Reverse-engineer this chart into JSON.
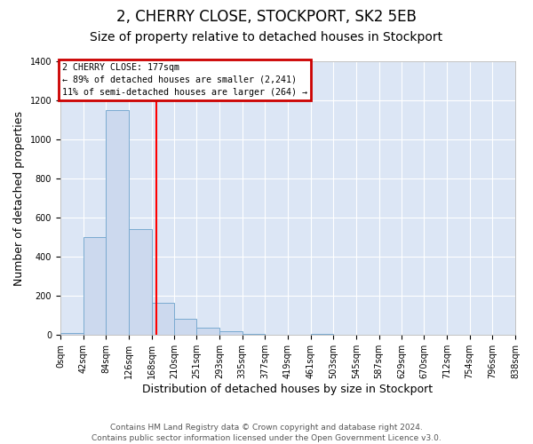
{
  "title": "2, CHERRY CLOSE, STOCKPORT, SK2 5EB",
  "subtitle": "Size of property relative to detached houses in Stockport",
  "xlabel": "Distribution of detached houses by size in Stockport",
  "ylabel": "Number of detached properties",
  "bin_edges": [
    0,
    42,
    84,
    126,
    168,
    210,
    251,
    293,
    335,
    377,
    419,
    461,
    503,
    545,
    587,
    629,
    670,
    712,
    754,
    796,
    838
  ],
  "bin_labels": [
    "0sqm",
    "42sqm",
    "84sqm",
    "126sqm",
    "168sqm",
    "210sqm",
    "251sqm",
    "293sqm",
    "335sqm",
    "377sqm",
    "419sqm",
    "461sqm",
    "503sqm",
    "545sqm",
    "587sqm",
    "629sqm",
    "670sqm",
    "712sqm",
    "754sqm",
    "796sqm",
    "838sqm"
  ],
  "bar_heights": [
    10,
    500,
    1150,
    540,
    165,
    85,
    38,
    22,
    5,
    0,
    0,
    5,
    0,
    0,
    0,
    0,
    0,
    0,
    0,
    0
  ],
  "bar_color": "#ccd9ee",
  "bar_edge_color": "#7aaad0",
  "property_line_x": 177,
  "property_line_color": "red",
  "ylim": [
    0,
    1400
  ],
  "yticks": [
    0,
    200,
    400,
    600,
    800,
    1000,
    1200,
    1400
  ],
  "annotation_title": "2 CHERRY CLOSE: 177sqm",
  "annotation_line1": "← 89% of detached houses are smaller (2,241)",
  "annotation_line2": "11% of semi-detached houses are larger (264) →",
  "annotation_box_color": "#cc0000",
  "footer_line1": "Contains HM Land Registry data © Crown copyright and database right 2024.",
  "footer_line2": "Contains public sector information licensed under the Open Government Licence v3.0.",
  "background_color": "#ffffff",
  "plot_bg_color": "#dce6f5",
  "grid_color": "white",
  "title_fontsize": 12,
  "subtitle_fontsize": 10,
  "axis_label_fontsize": 9,
  "tick_fontsize": 7,
  "footer_fontsize": 6.5
}
